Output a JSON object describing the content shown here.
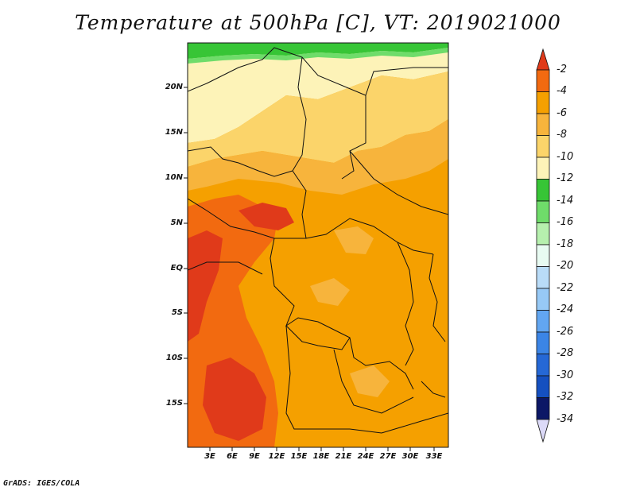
{
  "title": "Temperature at 500hPa [C], VT: 2019021000",
  "credit": "GrADS: IGES/COLA",
  "map": {
    "lat_labels": [
      "20N",
      "15N",
      "10N",
      "5N",
      "EQ",
      "5S",
      "10S",
      "15S"
    ],
    "lon_labels": [
      "3E",
      "6E",
      "9E",
      "12E",
      "15E",
      "18E",
      "21E",
      "24E",
      "27E",
      "30E",
      "33E"
    ]
  },
  "colorbar": {
    "labels": [
      "-2",
      "-4",
      "-6",
      "-8",
      "-10",
      "-12",
      "-14",
      "-16",
      "-18",
      "-20",
      "-22",
      "-24",
      "-26",
      "-28",
      "-30",
      "-32",
      "-34"
    ],
    "colors": [
      "#e03a1a",
      "#f26a10",
      "#f5a000",
      "#f7b43c",
      "#fbd46a",
      "#fdf3b8",
      "#37c536",
      "#6fdc6a",
      "#b6f0ae",
      "#e8fbf2",
      "#b9dcf8",
      "#97c9f6",
      "#62a6f1",
      "#3b85e6",
      "#2568d6",
      "#1550c0",
      "#0f2f9a",
      "#0c1766",
      "#dcdaf8"
    ]
  }
}
